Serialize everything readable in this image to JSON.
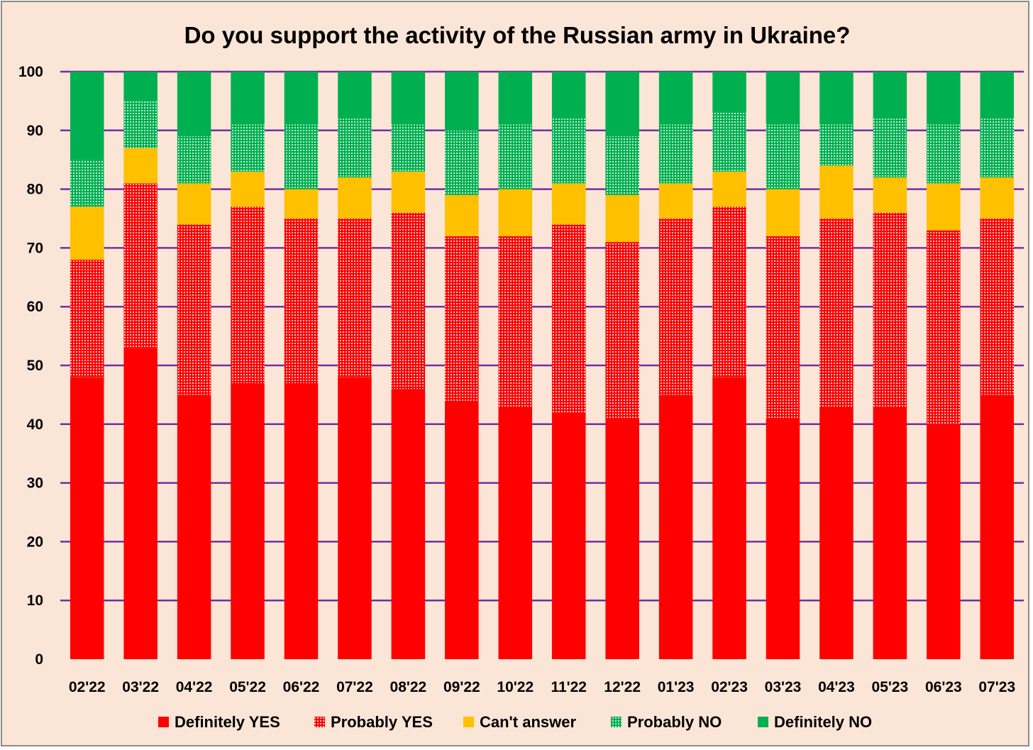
{
  "chart_data": {
    "type": "bar",
    "stacked": true,
    "title": "Do you support the activity of the Russian army in Ukraine?",
    "xlabel": "",
    "ylabel": "",
    "ylim": [
      0,
      100
    ],
    "yticks": [
      0,
      10,
      20,
      30,
      40,
      50,
      60,
      70,
      80,
      90,
      100
    ],
    "grid": true,
    "legend_position": "bottom",
    "categories": [
      "02'22",
      "03'22",
      "04'22",
      "05'22",
      "06'22",
      "07'22",
      "08'22",
      "09'22",
      "10'22",
      "11'22",
      "12'22",
      "01'23",
      "02'23",
      "03'23",
      "04'23",
      "05'23",
      "06'23",
      "07'23"
    ],
    "series": [
      {
        "name": "Definitely YES",
        "color": "#ff0000",
        "pattern": "solid",
        "values": [
          48,
          53,
          45,
          47,
          47,
          48,
          46,
          44,
          43,
          42,
          41,
          45,
          48,
          41,
          43,
          43,
          40,
          45
        ]
      },
      {
        "name": "Probably YES",
        "color": "#ff0000",
        "pattern": "dotted",
        "values": [
          20,
          28,
          29,
          30,
          28,
          27,
          30,
          28,
          29,
          32,
          30,
          30,
          29,
          31,
          32,
          33,
          33,
          30
        ]
      },
      {
        "name": "Can't answer",
        "color": "#ffc000",
        "pattern": "solid",
        "values": [
          9,
          6,
          7,
          6,
          5,
          7,
          7,
          7,
          8,
          7,
          8,
          6,
          6,
          8,
          9,
          6,
          8,
          7
        ]
      },
      {
        "name": "Probably NO",
        "color": "#00b050",
        "pattern": "dotted",
        "values": [
          8,
          8,
          8,
          8,
          11,
          10,
          8,
          11,
          11,
          11,
          10,
          10,
          10,
          11,
          7,
          10,
          10,
          10
        ]
      },
      {
        "name": "Definitely NO",
        "color": "#00b050",
        "pattern": "solid",
        "values": [
          15,
          5,
          11,
          9,
          9,
          8,
          9,
          10,
          9,
          8,
          11,
          9,
          7,
          9,
          9,
          8,
          9,
          8
        ]
      }
    ],
    "colors": {
      "background": "#fbe5d6",
      "gridline": "#7030a0"
    }
  }
}
